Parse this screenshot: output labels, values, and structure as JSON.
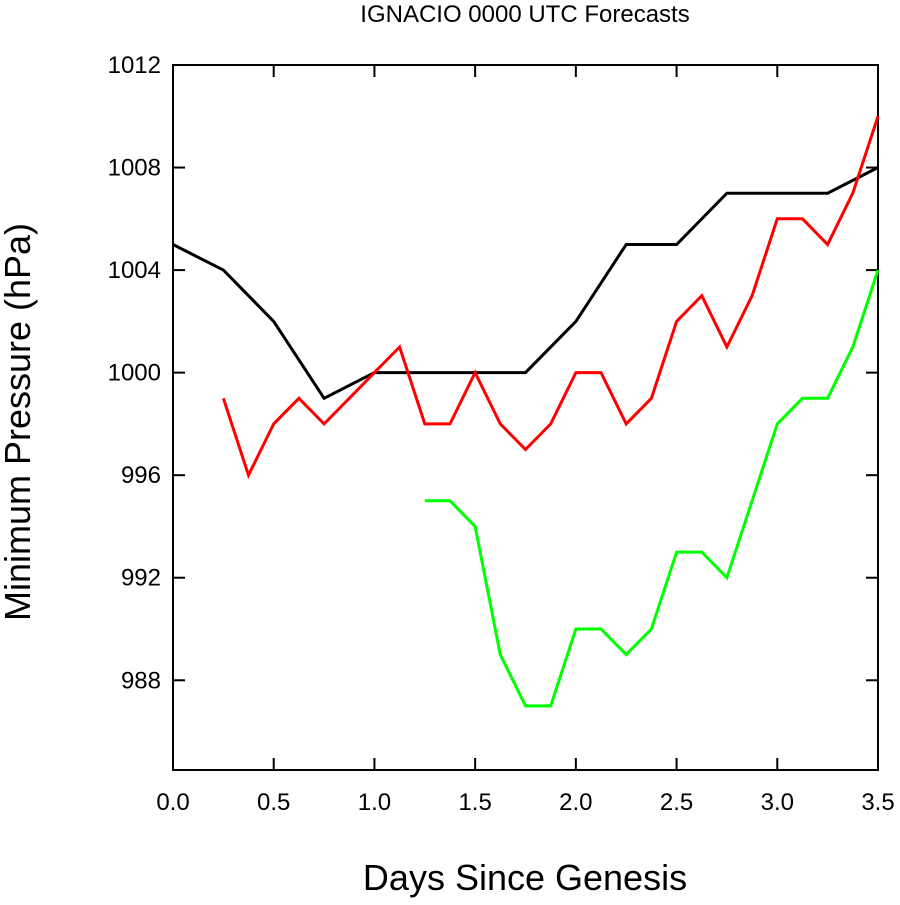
{
  "chart_data": {
    "type": "line",
    "title": "IGNACIO 0000 UTC Forecasts",
    "xlabel": "Days Since Genesis",
    "ylabel": "Minimum Pressure (hPa)",
    "xlim": [
      0,
      3.5
    ],
    "ylim": [
      984.5,
      1012
    ],
    "xticks": [
      "0.0",
      "0.5",
      "1.0",
      "1.5",
      "2.0",
      "2.5",
      "3.0",
      "3.5"
    ],
    "yticks": [
      "988",
      "992",
      "996",
      "1000",
      "1004",
      "1008",
      "1012"
    ],
    "grid": false,
    "series": [
      {
        "color": "#000000",
        "x": [
          0,
          0.25,
          0.5,
          0.75,
          1.0,
          1.25,
          1.5,
          1.75,
          2.0,
          2.25,
          2.5,
          2.75,
          3.0,
          3.25,
          3.5
        ],
        "y": [
          1005,
          1004,
          1002,
          999,
          1000,
          1000,
          1000,
          1000,
          1002,
          1005,
          1005,
          1007,
          1007,
          1007,
          1008
        ]
      },
      {
        "color": "#ff0000",
        "x": [
          0.25,
          0.375,
          0.5,
          0.625,
          0.75,
          0.875,
          1.0,
          1.125,
          1.25,
          1.375,
          1.5,
          1.625,
          1.75,
          1.875,
          2.0,
          2.125,
          2.25,
          2.375,
          2.5,
          2.625,
          2.75,
          2.875,
          3.0,
          3.125,
          3.25,
          3.375,
          3.5
        ],
        "y": [
          999,
          996,
          998,
          999,
          998,
          999,
          1000,
          1001,
          998,
          998,
          1000,
          998,
          997,
          998,
          1000,
          1000,
          998,
          999,
          1002,
          1003,
          1001,
          1003,
          1006,
          1006,
          1005,
          1007,
          1010
        ]
      },
      {
        "color": "#00ff00",
        "x": [
          1.25,
          1.375,
          1.5,
          1.625,
          1.75,
          1.875,
          2.0,
          2.125,
          2.25,
          2.375,
          2.5,
          2.625,
          2.75,
          2.875,
          3.0,
          3.125,
          3.25,
          3.375,
          3.5
        ],
        "y": [
          995,
          995,
          994,
          989,
          987,
          987,
          990,
          990,
          989,
          990,
          993,
          993,
          992,
          995,
          998,
          999,
          999,
          1001,
          1004
        ]
      }
    ]
  }
}
